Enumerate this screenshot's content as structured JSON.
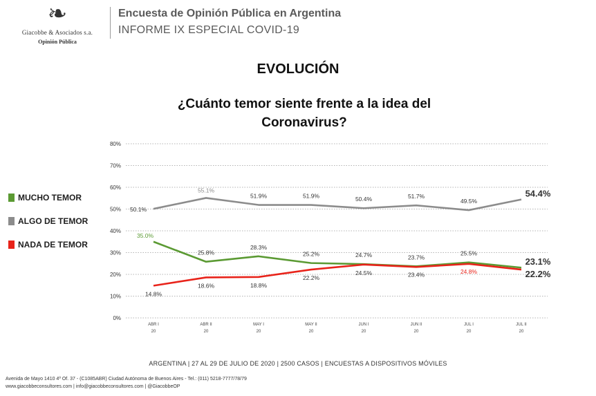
{
  "header": {
    "logo_name": "Giacobbe & Asociados s.a.",
    "logo_sub": "Opinión Pública",
    "title": "Encuesta de Opinión Pública en Argentina",
    "subtitle": "INFORME IX ESPECIAL COVID-19"
  },
  "section_title": "EVOLUCIÓN",
  "footer": {
    "sample_line": "ARGENTINA | 27 AL 29 DE JULIO DE 2020 | 2500 CASOS | ENCUESTAS A DISPOSITIVOS MÓVILES",
    "address_line": "Avenida de Mayo 1410 4º Of. 37 - (C1085ABR) Ciudad Autónoma de Buenos Aires - Tel.: (011) 5218-7777/78/79",
    "web_line": "www.giacobbeconsultores.com | info@giacobbeconsultores.com | @GiacobbeOP"
  },
  "chart_data": {
    "type": "line",
    "title": "¿Cuánto temor siente frente a la idea del Coronavirus?",
    "categories": [
      [
        "ABR I",
        "20"
      ],
      [
        "ABR II",
        "20"
      ],
      [
        "MAY I",
        "20"
      ],
      [
        "MAY II",
        "20"
      ],
      [
        "JUN I",
        "20"
      ],
      [
        "JUN II",
        "20"
      ],
      [
        "JUL I",
        "20"
      ],
      [
        "JUL II",
        "20"
      ]
    ],
    "y_ticks": [
      "0%",
      "10%",
      "20%",
      "30%",
      "40%",
      "50%",
      "60%",
      "70%",
      "80%"
    ],
    "ylim": [
      0,
      80
    ],
    "grid": true,
    "legend_position": "left",
    "series": [
      {
        "name": "MUCHO TEMOR",
        "color": "#5b9a33",
        "values": [
          35.0,
          25.8,
          28.3,
          25.2,
          24.7,
          23.7,
          25.5,
          23.1
        ],
        "labels": [
          "35.0%",
          "25.8%",
          "28.3%",
          "25.2%",
          "24.7%",
          "23.7%",
          "25.5%",
          "23.1%"
        ]
      },
      {
        "name": "ALGO DE TEMOR",
        "color": "#8c8c8c",
        "values": [
          50.1,
          55.1,
          51.9,
          51.9,
          50.4,
          51.7,
          49.5,
          54.4
        ],
        "labels": [
          "50.1%",
          "55.1%",
          "51.9%",
          "51.9%",
          "50.4%",
          "51.7%",
          "49.5%",
          "54.4%"
        ]
      },
      {
        "name": "NADA DE TEMOR",
        "color": "#e8231a",
        "values": [
          14.8,
          18.6,
          18.8,
          22.2,
          24.5,
          23.4,
          24.8,
          22.2
        ],
        "labels": [
          "14.8%",
          "18.6%",
          "18.8%",
          "22.2%",
          "24.5%",
          "23.4%",
          "24.8%",
          "22.2%"
        ]
      }
    ]
  }
}
